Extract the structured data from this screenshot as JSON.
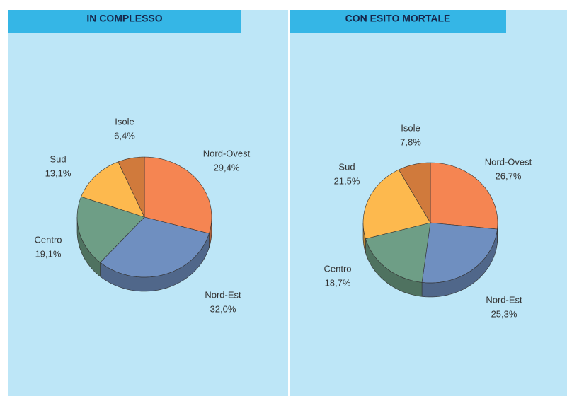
{
  "chart_data": [
    {
      "type": "pie",
      "title": "IN COMPLESSO",
      "categories": [
        "Nord-Ovest",
        "Nord-Est",
        "Centro",
        "Sud",
        "Isole"
      ],
      "values": [
        29.4,
        32.0,
        19.1,
        13.1,
        6.4
      ],
      "value_labels": [
        "29,4%",
        "32,0%",
        "19,1%",
        "13,1%",
        "6,4%"
      ],
      "colors": [
        "#f58552",
        "#6f8fc0",
        "#6e9e86",
        "#fdb94e",
        "#d07a3c"
      ]
    },
    {
      "type": "pie",
      "title": "CON ESITO MORTALE",
      "categories": [
        "Nord-Ovest",
        "Nord-Est",
        "Centro",
        "Sud",
        "Isole"
      ],
      "values": [
        26.7,
        25.3,
        18.7,
        21.5,
        7.8
      ],
      "value_labels": [
        "26,7%",
        "25,3%",
        "18,7%",
        "21,5%",
        "7,8%"
      ],
      "colors": [
        "#f58552",
        "#6f8fc0",
        "#6e9e86",
        "#fdb94e",
        "#d07a3c"
      ]
    }
  ]
}
